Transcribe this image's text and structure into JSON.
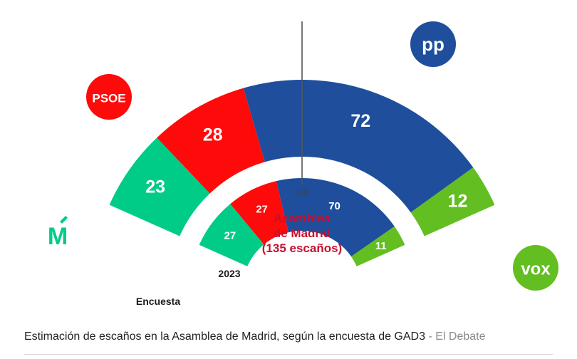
{
  "chart_data": {
    "type": "parliament-semicircle",
    "title": "Asamblea de Madrid (135 escaños)",
    "title_lines": [
      "Asamblea",
      "de Madrid",
      "(135 escaños)"
    ],
    "majority": 68,
    "rings": [
      {
        "name": "Encuesta",
        "parties": [
          {
            "party": "Más Madrid",
            "seats": 23,
            "color": "#00cc88"
          },
          {
            "party": "PSOE",
            "seats": 28,
            "color": "#ff0a0a"
          },
          {
            "party": "PP",
            "seats": 72,
            "color": "#1e4e9c"
          },
          {
            "party": "Vox",
            "seats": 12,
            "color": "#63be21"
          }
        ]
      },
      {
        "name": "2023",
        "parties": [
          {
            "party": "Más Madrid",
            "seats": 27,
            "color": "#00cc88"
          },
          {
            "party": "PSOE",
            "seats": 27,
            "color": "#ff0a0a"
          },
          {
            "party": "PP",
            "seats": 70,
            "color": "#1e4e9c"
          },
          {
            "party": "Vox",
            "seats": 11,
            "color": "#63be21"
          }
        ]
      }
    ]
  },
  "labels": {
    "survey": "Encuesta",
    "year": "2023",
    "majority": "68"
  },
  "logos": {
    "psoe": "PSOE",
    "pp": "pp",
    "vox": "vox",
    "mas_madrid": "M",
    "psoe_color": "#ff0a0a",
    "pp_color": "#1e4e9c",
    "vox_color": "#63be21",
    "mas_madrid_color": "#00cc88"
  },
  "caption": {
    "text": "Estimación de escaños en la Asamblea de Madrid, según la encuesta de GAD3",
    "source": " - El Debate"
  }
}
